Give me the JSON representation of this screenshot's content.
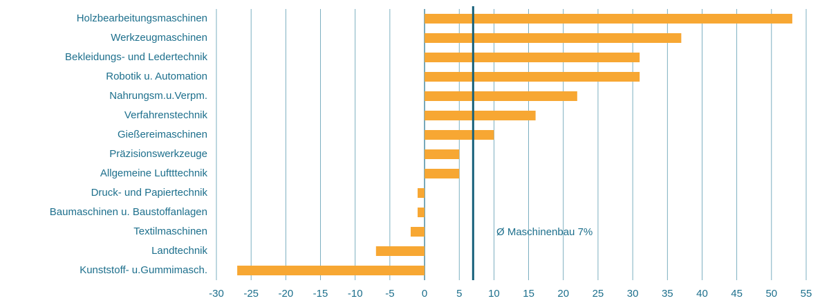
{
  "chart_data": {
    "type": "bar",
    "orientation": "horizontal",
    "categories": [
      "Holzbearbeitungsmaschinen",
      "Werkzeugmaschinen",
      "Bekleidungs- und Ledertechnik",
      "Robotik u. Automation",
      "Nahrungsm.u.Verpm.",
      "Verfahrenstechnik",
      "Gießereimaschinen",
      "Präzisionswerkzeuge",
      "Allgemeine Luftttechnik",
      "Druck- und Papiertechnik",
      "Baumaschinen u. Baustoffanlagen",
      "Textilmaschinen",
      "Landtechnik",
      "Kunststoff- u.Gummimasch."
    ],
    "values": [
      53,
      37,
      31,
      31,
      22,
      16,
      10,
      5,
      5,
      -1,
      -1,
      -2,
      -7,
      -27
    ],
    "color": "#f7a733",
    "xlim": [
      -30,
      55
    ],
    "xticks": [
      -30,
      -25,
      -20,
      -15,
      -10,
      -5,
      0,
      5,
      10,
      15,
      20,
      25,
      30,
      35,
      40,
      45,
      50,
      55
    ],
    "grid": true,
    "reference_line": 7,
    "annotation": "Ø Maschinenbau 7%"
  }
}
